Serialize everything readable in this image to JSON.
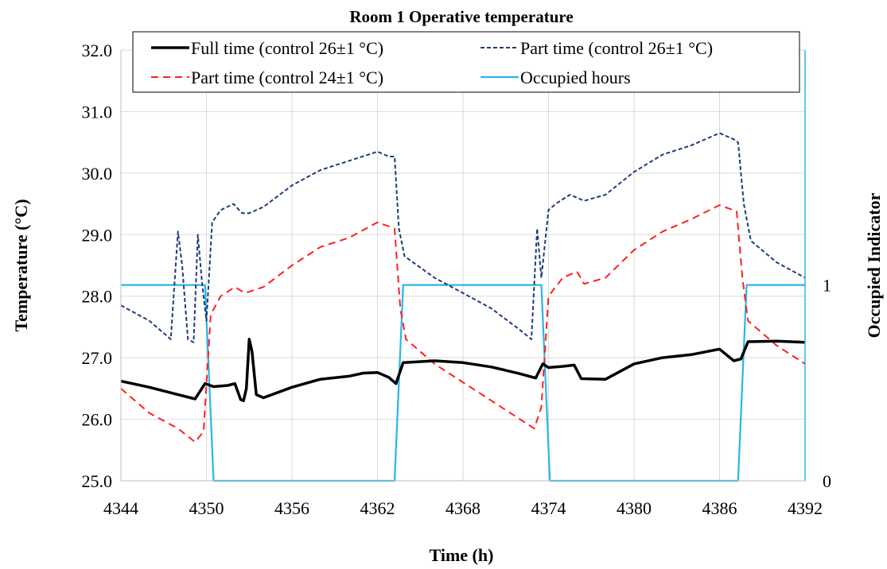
{
  "chart_data": {
    "type": "line",
    "title": "Room 1 Operative temperature",
    "xlabel": "Time (h)",
    "ylabel": "Temperature  (°C)",
    "y2label": "Occupied Indicator",
    "xlim": [
      4344,
      4392
    ],
    "ylim": [
      25.0,
      32.0
    ],
    "y2lim": [
      0,
      2.2
    ],
    "x_ticks": [
      4344,
      4350,
      4356,
      4362,
      4368,
      4374,
      4380,
      4386,
      4392
    ],
    "y_ticks": [
      "25.0",
      "26.0",
      "27.0",
      "28.0",
      "29.0",
      "30.0",
      "31.0",
      "32.0"
    ],
    "y2_ticks": [
      "0",
      "1"
    ],
    "grid": true,
    "legend_position": "top",
    "series": [
      {
        "name": "Full time (control 26±1 °C)",
        "color": "#000000",
        "style": "solid-thick",
        "axis": "left",
        "points": [
          [
            4344,
            26.62
          ],
          [
            4346,
            26.52
          ],
          [
            4348,
            26.4
          ],
          [
            4349.2,
            26.33
          ],
          [
            4349.9,
            26.58
          ],
          [
            4350.5,
            26.53
          ],
          [
            4351.5,
            26.55
          ],
          [
            4352,
            26.58
          ],
          [
            4352.4,
            26.32
          ],
          [
            4352.6,
            26.3
          ],
          [
            4352.8,
            26.5
          ],
          [
            4353,
            27.3
          ],
          [
            4353.2,
            27.1
          ],
          [
            4353.5,
            26.4
          ],
          [
            4354,
            26.35
          ],
          [
            4356,
            26.52
          ],
          [
            4358,
            26.65
          ],
          [
            4360,
            26.7
          ],
          [
            4361,
            26.75
          ],
          [
            4362,
            26.76
          ],
          [
            4362.8,
            26.68
          ],
          [
            4363.3,
            26.58
          ],
          [
            4363.8,
            26.92
          ],
          [
            4366,
            26.95
          ],
          [
            4368,
            26.92
          ],
          [
            4370,
            26.85
          ],
          [
            4372,
            26.74
          ],
          [
            4373.1,
            26.67
          ],
          [
            4373.6,
            26.9
          ],
          [
            4374,
            26.84
          ],
          [
            4375,
            26.86
          ],
          [
            4375.8,
            26.88
          ],
          [
            4376.3,
            26.66
          ],
          [
            4378,
            26.65
          ],
          [
            4380,
            26.9
          ],
          [
            4382,
            27.0
          ],
          [
            4384,
            27.05
          ],
          [
            4386,
            27.14
          ],
          [
            4387,
            26.95
          ],
          [
            4387.5,
            26.98
          ],
          [
            4388,
            27.26
          ],
          [
            4390,
            27.27
          ],
          [
            4392,
            27.25
          ]
        ]
      },
      {
        "name": "Part time (control 26±1 °C)",
        "color": "#1f3a7a",
        "style": "dotted",
        "axis": "left",
        "points": [
          [
            4344,
            27.85
          ],
          [
            4346,
            27.6
          ],
          [
            4347.5,
            27.3
          ],
          [
            4348,
            29.05
          ],
          [
            4348.3,
            28.5
          ],
          [
            4348.7,
            27.3
          ],
          [
            4349.1,
            27.25
          ],
          [
            4349.4,
            29.0
          ],
          [
            4349.7,
            28.2
          ],
          [
            4350,
            27.6
          ],
          [
            4350.4,
            29.2
          ],
          [
            4351,
            29.4
          ],
          [
            4351.9,
            29.5
          ],
          [
            4352.5,
            29.35
          ],
          [
            4353,
            29.35
          ],
          [
            4354,
            29.45
          ],
          [
            4356,
            29.8
          ],
          [
            4358,
            30.05
          ],
          [
            4360,
            30.2
          ],
          [
            4362,
            30.35
          ],
          [
            4362.8,
            30.27
          ],
          [
            4363.2,
            30.27
          ],
          [
            4363.5,
            29.1
          ],
          [
            4363.9,
            28.65
          ],
          [
            4366,
            28.3
          ],
          [
            4368,
            28.05
          ],
          [
            4370,
            27.8
          ],
          [
            4372,
            27.45
          ],
          [
            4372.8,
            27.3
          ],
          [
            4373.2,
            29.1
          ],
          [
            4373.5,
            28.3
          ],
          [
            4374,
            29.4
          ],
          [
            4374.5,
            29.5
          ],
          [
            4375.5,
            29.65
          ],
          [
            4376,
            29.6
          ],
          [
            4376.5,
            29.55
          ],
          [
            4378,
            29.65
          ],
          [
            4380,
            30.02
          ],
          [
            4382,
            30.3
          ],
          [
            4384,
            30.45
          ],
          [
            4386,
            30.65
          ],
          [
            4387,
            30.55
          ],
          [
            4387.3,
            30.5
          ],
          [
            4387.7,
            29.5
          ],
          [
            4388.2,
            28.9
          ],
          [
            4390,
            28.55
          ],
          [
            4392,
            28.3
          ]
        ]
      },
      {
        "name": "Part time (control 24±1 °C)",
        "color": "#ff2020",
        "style": "dashed",
        "axis": "left",
        "points": [
          [
            4344,
            26.5
          ],
          [
            4346,
            26.1
          ],
          [
            4348,
            25.85
          ],
          [
            4349.2,
            25.63
          ],
          [
            4349.8,
            25.8
          ],
          [
            4350.3,
            27.7
          ],
          [
            4351,
            28.0
          ],
          [
            4352,
            28.15
          ],
          [
            4352.7,
            28.05
          ],
          [
            4354,
            28.15
          ],
          [
            4356,
            28.5
          ],
          [
            4358,
            28.8
          ],
          [
            4360,
            28.95
          ],
          [
            4362,
            29.2
          ],
          [
            4363.2,
            29.1
          ],
          [
            4363.6,
            27.8
          ],
          [
            4364,
            27.3
          ],
          [
            4366,
            26.9
          ],
          [
            4368,
            26.6
          ],
          [
            4370,
            26.3
          ],
          [
            4372,
            26.0
          ],
          [
            4373,
            25.85
          ],
          [
            4373.5,
            26.2
          ],
          [
            4374,
            28.0
          ],
          [
            4375,
            28.3
          ],
          [
            4376,
            28.4
          ],
          [
            4376.5,
            28.2
          ],
          [
            4378,
            28.3
          ],
          [
            4380,
            28.75
          ],
          [
            4382,
            29.05
          ],
          [
            4384,
            29.25
          ],
          [
            4386,
            29.48
          ],
          [
            4387.2,
            29.38
          ],
          [
            4387.6,
            28.3
          ],
          [
            4388,
            27.6
          ],
          [
            4390,
            27.2
          ],
          [
            4392,
            26.9
          ]
        ]
      },
      {
        "name": "Occupied hours",
        "color": "#29b6e8",
        "style": "solid",
        "axis": "right",
        "points": [
          [
            4344,
            1
          ],
          [
            4349.9,
            1
          ],
          [
            4350.5,
            0
          ],
          [
            4363.2,
            0
          ],
          [
            4363.8,
            1
          ],
          [
            4373.5,
            1
          ],
          [
            4374.1,
            0
          ],
          [
            4387.3,
            0
          ],
          [
            4387.9,
            1
          ],
          [
            4392,
            1
          ]
        ]
      }
    ]
  }
}
